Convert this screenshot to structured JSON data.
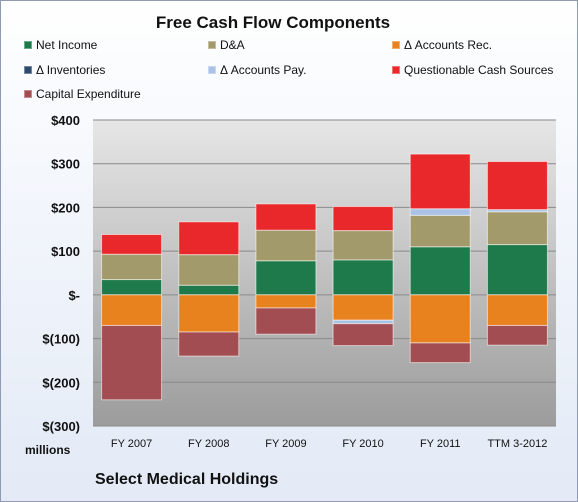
{
  "chart_data": {
    "type": "bar",
    "stacked": true,
    "title": "Free Cash Flow Components",
    "categories": [
      "FY 2007",
      "FY 2008",
      "FY 2009",
      "FY 2010",
      "FY 2011",
      "TTM 3-2012"
    ],
    "ylim": [
      -300,
      400
    ],
    "yticks": [
      {
        "value": 400,
        "label": "$400"
      },
      {
        "value": 300,
        "label": "$300"
      },
      {
        "value": 200,
        "label": "$200"
      },
      {
        "value": 100,
        "label": "$100"
      },
      {
        "value": 0,
        "label": "$-"
      },
      {
        "value": -100,
        "label": "$(100)"
      },
      {
        "value": -200,
        "label": "$(200)"
      },
      {
        "value": -300,
        "label": "$(300)"
      }
    ],
    "unit_label": "millions",
    "grid": true,
    "legend_position": "top",
    "series": [
      {
        "name": "Net Income",
        "color": "#1e7a4a",
        "values": [
          35,
          22,
          78,
          80,
          110,
          115
        ]
      },
      {
        "name": "D&A",
        "color": "#a39a6c",
        "values": [
          58,
          70,
          70,
          67,
          72,
          75
        ]
      },
      {
        "name": "Δ Accounts Rec.",
        "color": "#e8821e",
        "values": [
          -70,
          -85,
          -30,
          -58,
          -110,
          -70
        ]
      },
      {
        "name": "Δ Inventories",
        "color": "#2e4a6e",
        "values": [
          0,
          0,
          0,
          0,
          0,
          0
        ]
      },
      {
        "name": "Δ Accounts Pay.",
        "color": "#a9c2e6",
        "values": [
          0,
          0,
          0,
          -8,
          15,
          5
        ]
      },
      {
        "name": "Questionable Cash Sources",
        "color": "#e8282a",
        "values": [
          45,
          75,
          60,
          55,
          125,
          110
        ]
      },
      {
        "name": "Capital Expenditure",
        "color": "#a24d52",
        "values": [
          -170,
          -55,
          -60,
          -50,
          -45,
          -45
        ]
      }
    ]
  },
  "company_name": "Select Medical Holdings"
}
